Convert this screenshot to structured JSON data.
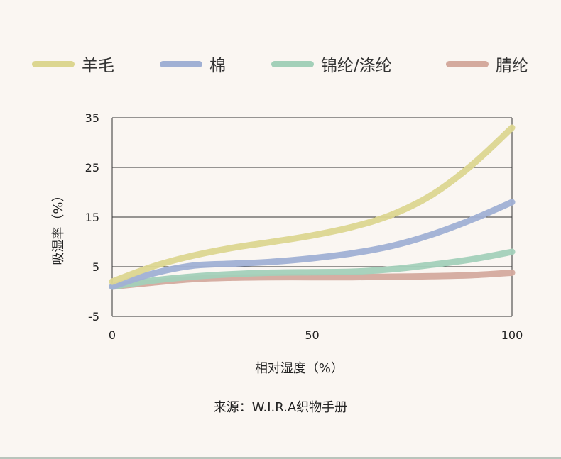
{
  "chart_data": {
    "type": "line",
    "title": "",
    "xlabel": "相对湿度（%）",
    "ylabel": "吸湿率（%）",
    "xlim": [
      0,
      100
    ],
    "ylim": [
      -5,
      35
    ],
    "xticks": [
      0,
      50,
      100
    ],
    "yticks": [
      -5,
      5,
      15,
      25,
      35
    ],
    "grid": "horizontal",
    "legend_position": "top",
    "series": [
      {
        "name": "羊毛",
        "color": "#dcd690",
        "x": [
          0,
          10,
          20,
          30,
          40,
          50,
          60,
          70,
          80,
          90,
          100
        ],
        "y": [
          2.0,
          5.0,
          7.2,
          8.8,
          10.0,
          11.3,
          13.0,
          15.5,
          19.5,
          25.5,
          33.0
        ]
      },
      {
        "name": "棉",
        "color": "#a0b0d4",
        "x": [
          0,
          10,
          20,
          30,
          40,
          50,
          60,
          70,
          80,
          90,
          100
        ],
        "y": [
          1.0,
          3.6,
          5.2,
          5.6,
          6.0,
          6.7,
          7.7,
          9.2,
          11.5,
          14.5,
          18.0
        ]
      },
      {
        "name": "锦纶/涤纶",
        "color": "#a3d0b9",
        "x": [
          0,
          10,
          20,
          30,
          40,
          50,
          60,
          70,
          80,
          90,
          100
        ],
        "y": [
          1.0,
          2.2,
          3.0,
          3.5,
          3.8,
          3.9,
          4.0,
          4.5,
          5.4,
          6.5,
          8.0
        ]
      },
      {
        "name": "腈纶",
        "color": "#d4aa9e",
        "x": [
          0,
          10,
          20,
          30,
          40,
          50,
          60,
          70,
          80,
          90,
          100
        ],
        "y": [
          1.0,
          1.8,
          2.5,
          2.8,
          2.9,
          2.9,
          2.9,
          3.0,
          3.1,
          3.3,
          3.8
        ]
      }
    ],
    "source": "来源：W.I.R.A织物手册"
  }
}
